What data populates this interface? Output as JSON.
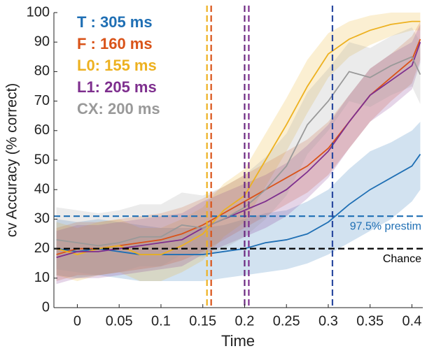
{
  "chart_data": {
    "type": "line",
    "xlabel": "Time",
    "ylabel": "cv Accuracy (% correct)",
    "x": [
      -0.025,
      0,
      0.025,
      0.05,
      0.075,
      0.1,
      0.125,
      0.15,
      0.175,
      0.2,
      0.225,
      0.25,
      0.275,
      0.3,
      0.325,
      0.35,
      0.375,
      0.4,
      0.41
    ],
    "xlim": [
      -0.028,
      0.413
    ],
    "ylim": [
      0,
      100
    ],
    "xticks": [
      0,
      0.05,
      0.1,
      0.15,
      0.2,
      0.25,
      0.3,
      0.35,
      0.4
    ],
    "yticks": [
      0,
      10,
      20,
      30,
      40,
      50,
      60,
      70,
      80,
      90,
      100
    ],
    "series": [
      {
        "name": "T : 305 ms",
        "color": "#1f6fb4",
        "onset": 0.305,
        "onset_color": "#2b4aa0",
        "values": [
          20,
          19,
          20,
          19,
          18,
          18,
          18,
          18,
          19,
          20,
          22,
          23,
          25,
          29,
          35,
          40,
          44,
          48,
          52
        ],
        "lower": [
          11,
          10,
          11,
          10,
          9,
          9,
          9,
          9,
          10,
          11,
          12,
          13,
          15,
          18,
          22,
          26,
          30,
          36,
          40
        ],
        "upper": [
          30,
          29,
          30,
          29,
          28,
          27,
          27,
          27,
          28,
          30,
          32,
          33,
          36,
          40,
          47,
          53,
          56,
          60,
          63
        ]
      },
      {
        "name": "F : 160 ms",
        "color": "#d95319",
        "onset": 0.16,
        "onset_color": "#d95319",
        "values": [
          18,
          20,
          20,
          21,
          22,
          23,
          25,
          28,
          32,
          36,
          40,
          44,
          48,
          54,
          63,
          72,
          78,
          84,
          91
        ],
        "lower": [
          9,
          11,
          11,
          12,
          13,
          14,
          16,
          19,
          23,
          27,
          31,
          35,
          39,
          45,
          54,
          63,
          70,
          76,
          84
        ],
        "upper": [
          27,
          29,
          29,
          30,
          31,
          32,
          34,
          37,
          41,
          45,
          49,
          53,
          57,
          63,
          72,
          81,
          86,
          92,
          97
        ]
      },
      {
        "name": "L0: 155 ms",
        "color": "#edb120",
        "onset": 0.155,
        "onset_color": "#edb120",
        "values": [
          20,
          18,
          20,
          21,
          18,
          18,
          21,
          25,
          33,
          38,
          50,
          62,
          75,
          86,
          91,
          94,
          96,
          97,
          97
        ],
        "lower": [
          11,
          9,
          11,
          12,
          9,
          9,
          12,
          16,
          24,
          29,
          41,
          53,
          66,
          78,
          85,
          89,
          92,
          94,
          94
        ],
        "upper": [
          29,
          27,
          29,
          30,
          27,
          27,
          30,
          34,
          42,
          47,
          59,
          71,
          84,
          93,
          97,
          99,
          100,
          100,
          100
        ]
      },
      {
        "name": "L1: 205 ms",
        "color": "#7e2f8e",
        "onset": 0.205,
        "onset_color": "#7e2f8e",
        "values": [
          17,
          19,
          19,
          20,
          21,
          22,
          23,
          27,
          30,
          33,
          36,
          40,
          46,
          53,
          63,
          72,
          77,
          82,
          90
        ],
        "lower": [
          8,
          10,
          10,
          11,
          12,
          13,
          14,
          18,
          21,
          24,
          27,
          31,
          37,
          44,
          54,
          63,
          68,
          74,
          83
        ],
        "upper": [
          26,
          28,
          28,
          29,
          30,
          31,
          32,
          36,
          39,
          42,
          45,
          49,
          55,
          62,
          72,
          81,
          86,
          90,
          96
        ]
      },
      {
        "name": "CX: 200 ms",
        "color": "#999999",
        "onset": 0.2,
        "onset_color": "#6a2a80",
        "values": [
          23,
          22,
          21,
          22,
          24,
          24,
          28,
          27,
          30,
          34,
          40,
          48,
          62,
          70,
          80,
          78,
          82,
          85,
          79
        ],
        "lower": [
          13,
          12,
          11,
          12,
          14,
          14,
          18,
          17,
          20,
          24,
          30,
          38,
          52,
          60,
          70,
          68,
          72,
          75,
          69
        ],
        "upper": [
          34,
          33,
          32,
          33,
          35,
          35,
          39,
          38,
          41,
          45,
          51,
          59,
          73,
          81,
          90,
          88,
          92,
          95,
          90
        ]
      }
    ],
    "hlines": [
      {
        "value": 31,
        "label": "97.5% prestim",
        "color": "#1f6fb4"
      },
      {
        "value": 20,
        "label": "Chance",
        "color": "#000000"
      }
    ]
  }
}
